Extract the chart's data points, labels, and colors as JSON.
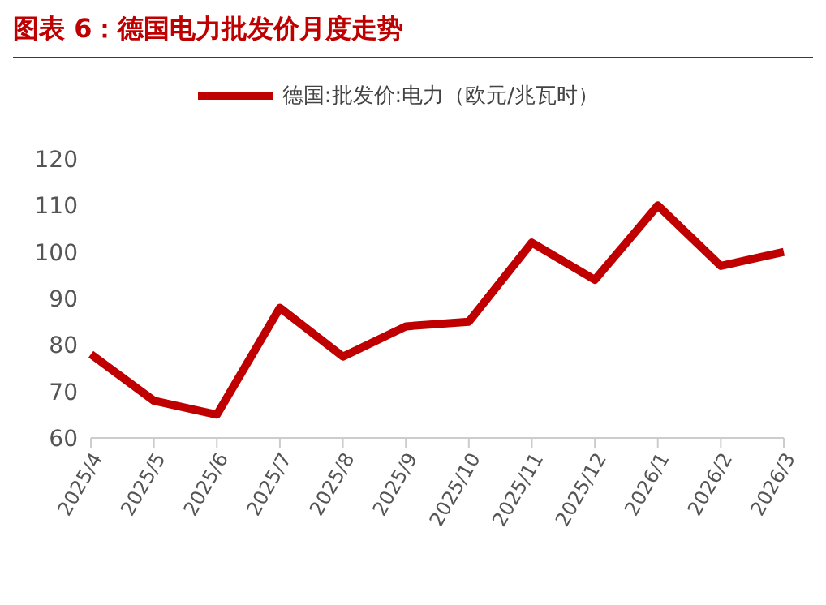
{
  "chart_data": {
    "type": "line",
    "title": "图表 6：德国电力批发价月度走势",
    "categories": [
      "2025/4",
      "2025/5",
      "2025/6",
      "2025/7",
      "2025/8",
      "2025/9",
      "2025/10",
      "2025/11",
      "2025/12",
      "2026/1",
      "2026/2",
      "2026/3"
    ],
    "series": [
      {
        "name": "德国:批发价:电力（欧元/兆瓦时）",
        "color": "#c00000",
        "values": [
          78,
          68,
          65,
          88,
          77.5,
          84,
          85,
          102,
          94,
          110,
          97,
          100
        ]
      }
    ],
    "ylim": [
      60,
      120
    ],
    "yticks": [
      60,
      70,
      80,
      90,
      100,
      110,
      120
    ],
    "grid": false,
    "legend": "top",
    "marker": "none",
    "line_style": "solid"
  }
}
